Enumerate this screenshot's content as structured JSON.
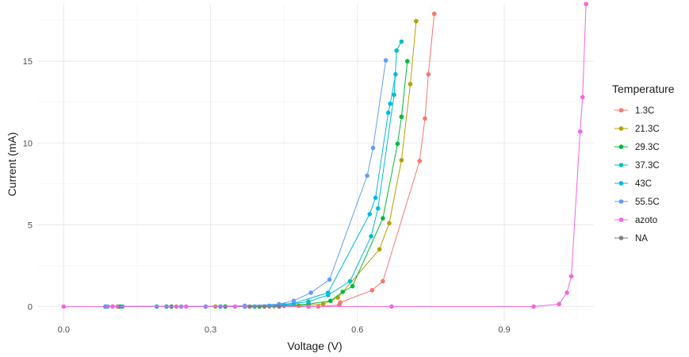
{
  "chart_data": {
    "type": "line",
    "xlabel": "Voltage (V)",
    "ylabel": "Current (mA)",
    "xlim": [
      -0.054,
      1.083
    ],
    "ylim": [
      -0.9,
      18.5
    ],
    "x_ticks": [
      0.0,
      0.3,
      0.6,
      0.9
    ],
    "x_tick_labels": [
      "0.0",
      "0.3",
      "0.6",
      "0.9"
    ],
    "y_ticks": [
      0,
      5,
      10,
      15
    ],
    "y_tick_labels": [
      "0",
      "5",
      "10",
      "15"
    ],
    "grid": true,
    "legend_position": "right",
    "legend_title": "Temperature",
    "series": [
      {
        "name": "1.3C",
        "color": "#F8766D",
        "points": [
          [
            0.11,
            0.0
          ],
          [
            0.23,
            0.0
          ],
          [
            0.33,
            0.0
          ],
          [
            0.42,
            0.0
          ],
          [
            0.52,
            0.0
          ],
          [
            0.563,
            0.1
          ],
          [
            0.565,
            0.25
          ],
          [
            0.63,
            1.0
          ],
          [
            0.652,
            1.55
          ],
          [
            0.727,
            8.9
          ],
          [
            0.738,
            11.5
          ],
          [
            0.745,
            14.2
          ],
          [
            0.757,
            17.9
          ]
        ]
      },
      {
        "name": "21.3C",
        "color": "#B79F00",
        "points": [
          [
            0.1,
            0.0
          ],
          [
            0.21,
            0.0
          ],
          [
            0.31,
            0.0
          ],
          [
            0.39,
            0.0
          ],
          [
            0.43,
            0.02
          ],
          [
            0.48,
            0.05
          ],
          [
            0.53,
            0.15
          ],
          [
            0.56,
            0.55
          ],
          [
            0.645,
            3.5
          ],
          [
            0.665,
            5.1
          ],
          [
            0.69,
            8.95
          ],
          [
            0.708,
            13.6
          ],
          [
            0.72,
            17.45
          ]
        ]
      },
      {
        "name": "29.3C",
        "color": "#00BA38",
        "points": [
          [
            0.115,
            0.0
          ],
          [
            0.22,
            0.0
          ],
          [
            0.33,
            0.0
          ],
          [
            0.4,
            0.0
          ],
          [
            0.45,
            0.05
          ],
          [
            0.5,
            0.15
          ],
          [
            0.545,
            0.35
          ],
          [
            0.57,
            0.9
          ],
          [
            0.59,
            1.25
          ],
          [
            0.652,
            5.4
          ],
          [
            0.682,
            9.95
          ],
          [
            0.69,
            11.6
          ],
          [
            0.702,
            15.0
          ]
        ]
      },
      {
        "name": "37.3C",
        "color": "#00BFC4",
        "points": [
          [
            0.12,
            0.0
          ],
          [
            0.21,
            0.0
          ],
          [
            0.32,
            0.0
          ],
          [
            0.39,
            0.0
          ],
          [
            0.45,
            0.1
          ],
          [
            0.5,
            0.3
          ],
          [
            0.54,
            0.7
          ],
          [
            0.585,
            1.55
          ],
          [
            0.628,
            4.3
          ],
          [
            0.642,
            6.0
          ],
          [
            0.675,
            12.95
          ],
          [
            0.68,
            15.65
          ],
          [
            0.69,
            16.2
          ]
        ]
      },
      {
        "name": "43C",
        "color": "#00B9E3",
        "points": [
          [
            0.085,
            0.0
          ],
          [
            0.19,
            0.0
          ],
          [
            0.29,
            0.0
          ],
          [
            0.37,
            0.0
          ],
          [
            0.42,
            0.05
          ],
          [
            0.47,
            0.2
          ],
          [
            0.54,
            0.85
          ],
          [
            0.625,
            5.65
          ],
          [
            0.637,
            6.65
          ],
          [
            0.663,
            11.85
          ],
          [
            0.667,
            12.4
          ],
          [
            0.678,
            14.2
          ]
        ]
      },
      {
        "name": "55.5C",
        "color": "#619CFF",
        "points": [
          [
            0.09,
            0.0
          ],
          [
            0.24,
            0.0
          ],
          [
            0.29,
            0.0
          ],
          [
            0.37,
            0.05
          ],
          [
            0.44,
            0.15
          ],
          [
            0.47,
            0.35
          ],
          [
            0.505,
            0.85
          ],
          [
            0.543,
            1.65
          ],
          [
            0.62,
            8.0
          ],
          [
            0.632,
            9.7
          ],
          [
            0.658,
            15.05
          ]
        ]
      },
      {
        "name": "azoto",
        "color": "#F564E3",
        "points": [
          [
            0.0,
            0.0
          ],
          [
            0.1,
            0.0
          ],
          [
            0.25,
            0.0
          ],
          [
            0.35,
            0.0
          ],
          [
            0.5,
            0.0
          ],
          [
            0.67,
            0.0
          ],
          [
            0.96,
            0.0
          ],
          [
            1.012,
            0.15
          ],
          [
            1.028,
            0.85
          ],
          [
            1.037,
            1.85
          ],
          [
            1.055,
            10.7
          ],
          [
            1.06,
            12.8
          ],
          [
            1.067,
            18.5
          ]
        ]
      },
      {
        "name": "NA",
        "color": "#7F7F7F",
        "points": [
          [
            0.38,
            0.0
          ],
          [
            0.41,
            0.0
          ],
          [
            0.44,
            0.0
          ]
        ]
      }
    ]
  }
}
